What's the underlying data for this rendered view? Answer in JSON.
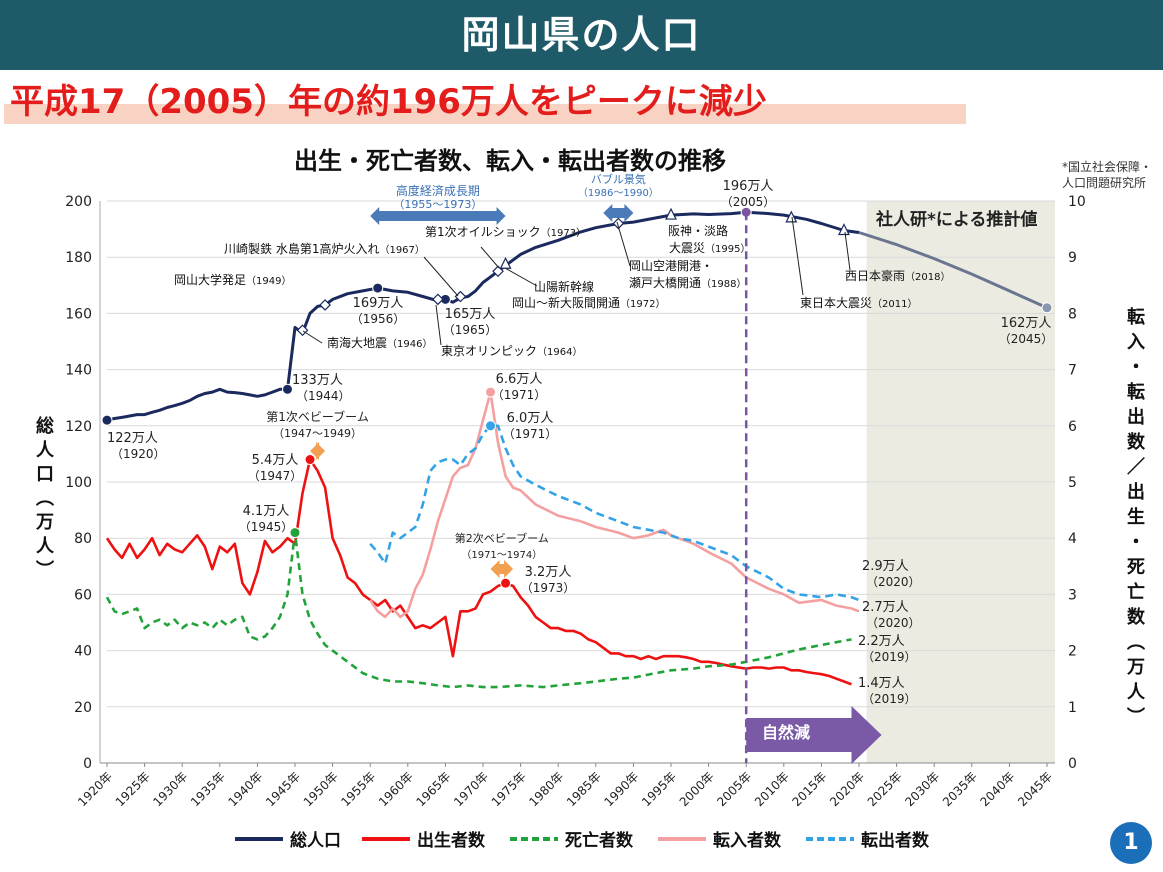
{
  "header": {
    "title": "岡山県の人口"
  },
  "subtitle": "平成17（2005）年の約196万人をピークに減少",
  "page_number": "1",
  "chart_data": {
    "type": "line",
    "title": "出生・死亡者数、転入・転出者数の推移",
    "source_note": [
      "*国立社会保障・",
      "人口問題研究所"
    ],
    "estimate_label": "社人研*による推計値",
    "natural_decrease_label": "自然減",
    "ylabel_left": "総人口（万人）",
    "ylabel_right": "転入・転出数／出生・死亡数（万人）",
    "ylim_left": [
      0,
      200
    ],
    "ylim_right": [
      0,
      10
    ],
    "yticks_left": [
      "0",
      "20",
      "40",
      "60",
      "80",
      "100",
      "120",
      "140",
      "160",
      "180",
      "200"
    ],
    "yticks_right": [
      "0",
      "1",
      "2",
      "3",
      "4",
      "5",
      "6",
      "7",
      "8",
      "9",
      "10"
    ],
    "xlim": [
      1920,
      2045
    ],
    "xticks": [
      "1920年",
      "1925年",
      "1930年",
      "1935年",
      "1940年",
      "1945年",
      "1950年",
      "1955年",
      "1960年",
      "1965年",
      "1970年",
      "1975年",
      "1980年",
      "1985年",
      "1990年",
      "1995年",
      "2000年",
      "2005年",
      "2010年",
      "2015年",
      "2020年",
      "2025年",
      "2030年",
      "2035年",
      "2040年",
      "2045年"
    ],
    "estimate_start": 2021,
    "peak_year": 2005,
    "legend": {
      "position": "bottom"
    },
    "series": [
      {
        "name": "総人口",
        "axis": "left",
        "color": "#1b2a5e",
        "dash": "",
        "x": [
          1920,
          1921,
          1922,
          1923,
          1924,
          1925,
          1926,
          1927,
          1928,
          1929,
          1930,
          1931,
          1932,
          1933,
          1934,
          1935,
          1936,
          1937,
          1938,
          1939,
          1940,
          1941,
          1942,
          1943,
          1944,
          1945,
          1946,
          1947,
          1948,
          1949,
          1950,
          1952,
          1954,
          1956,
          1958,
          1960,
          1962,
          1964,
          1965,
          1966,
          1967,
          1968,
          1969,
          1970,
          1971,
          1972,
          1973,
          1975,
          1977,
          1980,
          1983,
          1985,
          1988,
          1990,
          1993,
          1995,
          1998,
          2000,
          2003,
          2005,
          2008,
          2010,
          2013,
          2015,
          2018,
          2020
        ],
        "values": [
          122,
          122.6,
          123,
          123.5,
          124,
          124,
          124.8,
          125.5,
          126.5,
          127.2,
          128,
          129,
          130.5,
          131.5,
          132,
          133,
          132,
          131.8,
          131.5,
          131,
          130.5,
          131,
          132,
          133,
          133,
          155,
          153,
          160,
          162.5,
          163,
          165,
          167,
          168,
          169,
          168,
          167.5,
          166,
          164.5,
          165,
          164,
          165.5,
          166,
          168,
          171,
          173,
          175,
          177,
          181,
          183.5,
          186,
          189,
          190.5,
          192,
          192.5,
          194,
          195,
          195.4,
          195.2,
          195.5,
          196,
          195.5,
          195,
          193.5,
          192,
          189.5,
          188.8
        ]
      },
      {
        "name": "総人口推計",
        "axis": "left",
        "color": "#6a7690",
        "dash": "",
        "legend": false,
        "x": [
          2020,
          2025,
          2030,
          2035,
          2040,
          2045
        ],
        "values": [
          188.8,
          184.5,
          179.5,
          174,
          168,
          162
        ]
      },
      {
        "name": "出生者数",
        "axis": "right",
        "color": "#ee1111",
        "dash": "",
        "x": [
          1920,
          1921,
          1922,
          1923,
          1924,
          1925,
          1926,
          1927,
          1928,
          1929,
          1930,
          1931,
          1932,
          1933,
          1934,
          1935,
          1936,
          1937,
          1938,
          1939,
          1940,
          1941,
          1942,
          1943,
          1944,
          1945,
          1946,
          1947,
          1948,
          1949,
          1950,
          1951,
          1952,
          1953,
          1954,
          1955,
          1956,
          1957,
          1958,
          1959,
          1960,
          1961,
          1962,
          1963,
          1964,
          1965,
          1966,
          1967,
          1968,
          1969,
          1970,
          1971,
          1972,
          1973,
          1974,
          1975,
          1976,
          1977,
          1978,
          1979,
          1980,
          1981,
          1982,
          1983,
          1984,
          1985,
          1986,
          1987,
          1988,
          1989,
          1990,
          1991,
          1992,
          1993,
          1994,
          1995,
          1996,
          1997,
          1998,
          1999,
          2000,
          2001,
          2002,
          2003,
          2004,
          2005,
          2006,
          2007,
          2008,
          2009,
          2010,
          2011,
          2012,
          2013,
          2014,
          2015,
          2016,
          2017,
          2018,
          2019
        ],
        "values": [
          4.0,
          3.8,
          3.65,
          3.9,
          3.65,
          3.8,
          4.0,
          3.7,
          3.9,
          3.8,
          3.75,
          3.9,
          4.05,
          3.85,
          3.45,
          3.85,
          3.75,
          3.9,
          3.2,
          3.0,
          3.4,
          3.95,
          3.75,
          3.85,
          4.0,
          3.9,
          4.8,
          5.4,
          5.2,
          4.9,
          4.0,
          3.7,
          3.3,
          3.2,
          3.0,
          2.9,
          2.8,
          2.9,
          2.7,
          2.8,
          2.6,
          2.4,
          2.45,
          2.4,
          2.5,
          2.6,
          1.9,
          2.7,
          2.7,
          2.75,
          3.0,
          3.05,
          3.15,
          3.2,
          3.15,
          2.95,
          2.8,
          2.6,
          2.5,
          2.4,
          2.4,
          2.35,
          2.35,
          2.3,
          2.2,
          2.15,
          2.05,
          1.95,
          1.95,
          1.9,
          1.9,
          1.85,
          1.9,
          1.85,
          1.9,
          1.9,
          1.9,
          1.88,
          1.85,
          1.8,
          1.8,
          1.78,
          1.75,
          1.72,
          1.7,
          1.68,
          1.7,
          1.7,
          1.68,
          1.7,
          1.7,
          1.65,
          1.65,
          1.62,
          1.6,
          1.58,
          1.55,
          1.5,
          1.45,
          1.4
        ]
      },
      {
        "name": "死亡者数",
        "axis": "right",
        "color": "#22a33a",
        "dash": "7,5",
        "x": [
          1920,
          1921,
          1922,
          1923,
          1924,
          1925,
          1926,
          1927,
          1928,
          1929,
          1930,
          1931,
          1932,
          1933,
          1934,
          1935,
          1936,
          1937,
          1938,
          1939,
          1940,
          1941,
          1942,
          1943,
          1944,
          1945,
          1946,
          1947,
          1948,
          1949,
          1950,
          1952,
          1954,
          1956,
          1958,
          1960,
          1962,
          1964,
          1966,
          1968,
          1970,
          1972,
          1975,
          1978,
          1980,
          1983,
          1985,
          1988,
          1990,
          1993,
          1995,
          1998,
          2000,
          2003,
          2005,
          2008,
          2010,
          2012,
          2015,
          2017,
          2019
        ],
        "values": [
          2.95,
          2.7,
          2.65,
          2.7,
          2.75,
          2.4,
          2.5,
          2.55,
          2.45,
          2.55,
          2.4,
          2.5,
          2.45,
          2.5,
          2.4,
          2.55,
          2.45,
          2.55,
          2.6,
          2.25,
          2.2,
          2.25,
          2.4,
          2.6,
          3.0,
          4.1,
          3.0,
          2.55,
          2.3,
          2.1,
          2.0,
          1.8,
          1.6,
          1.5,
          1.45,
          1.45,
          1.42,
          1.38,
          1.35,
          1.38,
          1.35,
          1.35,
          1.38,
          1.35,
          1.38,
          1.42,
          1.45,
          1.5,
          1.52,
          1.6,
          1.65,
          1.68,
          1.72,
          1.75,
          1.8,
          1.88,
          1.95,
          2.02,
          2.1,
          2.15,
          2.2
        ]
      },
      {
        "name": "転入者数",
        "axis": "right",
        "color": "#f4a0a0",
        "dash": "",
        "x": [
          1955,
          1956,
          1957,
          1958,
          1959,
          1960,
          1961,
          1962,
          1963,
          1964,
          1965,
          1966,
          1967,
          1968,
          1969,
          1970,
          1971,
          1972,
          1973,
          1974,
          1975,
          1977,
          1980,
          1983,
          1985,
          1988,
          1990,
          1992,
          1994,
          1995,
          1996,
          1998,
          2000,
          2003,
          2005,
          2008,
          2010,
          2012,
          2015,
          2017,
          2019,
          2020
        ],
        "values": [
          2.9,
          2.7,
          2.6,
          2.75,
          2.6,
          2.7,
          3.1,
          3.35,
          3.8,
          4.3,
          4.7,
          5.1,
          5.25,
          5.3,
          5.6,
          6.1,
          6.6,
          5.7,
          5.1,
          4.9,
          4.85,
          4.6,
          4.4,
          4.3,
          4.2,
          4.1,
          4.0,
          4.05,
          4.15,
          4.05,
          4.0,
          3.9,
          3.75,
          3.55,
          3.3,
          3.1,
          3.0,
          2.85,
          2.9,
          2.8,
          2.75,
          2.7
        ]
      },
      {
        "name": "転出者数",
        "axis": "right",
        "color": "#33a3e6",
        "dash": "8,5",
        "x": [
          1955,
          1956,
          1957,
          1958,
          1959,
          1960,
          1961,
          1962,
          1963,
          1964,
          1965,
          1966,
          1967,
          1968,
          1969,
          1970,
          1971,
          1972,
          1973,
          1974,
          1975,
          1977,
          1980,
          1983,
          1985,
          1988,
          1990,
          1992,
          1994,
          1995,
          1996,
          1998,
          2000,
          2003,
          2005,
          2008,
          2010,
          2012,
          2015,
          2017,
          2019,
          2020
        ],
        "values": [
          3.9,
          3.75,
          3.55,
          4.1,
          4.0,
          4.1,
          4.2,
          4.6,
          5.2,
          5.35,
          5.4,
          5.4,
          5.3,
          5.5,
          5.6,
          5.85,
          6.0,
          6.0,
          5.6,
          5.3,
          5.1,
          4.95,
          4.75,
          4.6,
          4.45,
          4.3,
          4.2,
          4.15,
          4.1,
          4.05,
          4.0,
          3.95,
          3.85,
          3.7,
          3.5,
          3.3,
          3.1,
          3.0,
          2.95,
          3.0,
          2.95,
          2.9
        ]
      }
    ],
    "bands": [
      {
        "label": "高度経済成長期",
        "period": "（1955〜1973）",
        "x0": 1955,
        "x1": 1973,
        "color": "#4a7ab8"
      },
      {
        "label": "バブル景気",
        "period": "（1986〜1990）",
        "x0": 1986,
        "x1": 1990,
        "color": "#4a7ab8"
      },
      {
        "label": "第1次ベビーブーム",
        "period": "（1947〜1949）",
        "x0": 1947,
        "x1": 1949,
        "color": "#f0a050"
      },
      {
        "label": "第2次ベビーブーム",
        "period": "（1971〜1974）",
        "x0": 1971,
        "x1": 1974,
        "color": "#f0a050"
      }
    ],
    "annotations": [
      {
        "lines": [
          "122万人",
          "（1920）"
        ]
      },
      {
        "lines": [
          "133万人",
          "（1944）"
        ]
      },
      {
        "lines": [
          "169万人",
          "（1956）"
        ]
      },
      {
        "lines": [
          "165万人",
          "（1965）"
        ]
      },
      {
        "lines": [
          "196万人",
          "（2005）"
        ]
      },
      {
        "lines": [
          "162万人",
          "（2045）"
        ]
      },
      {
        "lines": [
          "5.4万人",
          "（1947）"
        ]
      },
      {
        "lines": [
          "4.1万人",
          "（1945）"
        ]
      },
      {
        "lines": [
          "6.6万人",
          "（1971）"
        ]
      },
      {
        "lines": [
          "6.0万人",
          "（1971）"
        ]
      },
      {
        "lines": [
          "3.2万人",
          "（1973）"
        ]
      },
      {
        "lines": [
          "2.9万人",
          "（2020）"
        ]
      },
      {
        "lines": [
          "2.7万人",
          "（2020）"
        ]
      },
      {
        "lines": [
          "2.2万人",
          "（2019）"
        ]
      },
      {
        "lines": [
          "1.4万人",
          "（2019）"
        ]
      }
    ],
    "events": [
      {
        "text": "岡山大学発足",
        "year": "（1949）"
      },
      {
        "text": "川崎製鉄 水島第1高炉火入れ",
        "year": "（1967）"
      },
      {
        "text": "南海大地震",
        "year": "（1946）"
      },
      {
        "text": "第1次オイルショック",
        "year": "（1973）"
      },
      {
        "text": "東京オリンピック",
        "year": "（1964）"
      },
      {
        "text": "山陽新幹線",
        "year": ""
      },
      {
        "text": "岡山〜新大阪間開通",
        "year": "（1972）"
      },
      {
        "text": "岡山空港開港・",
        "year": ""
      },
      {
        "text": "瀬戸大橋開通",
        "year": "（1988）"
      },
      {
        "text": "阪神・淡路",
        "year": ""
      },
      {
        "text": "大震災",
        "year": "（1995）"
      },
      {
        "text": "東日本大震災",
        "year": "（2011）"
      },
      {
        "text": "西日本豪雨",
        "year": "（2018）"
      }
    ]
  }
}
